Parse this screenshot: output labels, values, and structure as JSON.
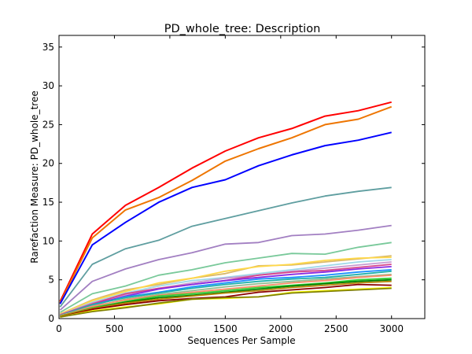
{
  "chart_data": {
    "type": "line",
    "title": "PD_whole_tree: Description",
    "xlabel": "Sequences Per Sample",
    "ylabel": "Rarefaction Measure: PD_whole_tree",
    "xlim": [
      0,
      3300
    ],
    "ylim": [
      0,
      36.5
    ],
    "xticks": [
      0,
      500,
      1000,
      1500,
      2000,
      2500,
      3000
    ],
    "yticks": [
      0,
      5,
      10,
      15,
      20,
      25,
      30,
      35
    ],
    "x": [
      10,
      300,
      600,
      900,
      1200,
      1500,
      1800,
      2100,
      2400,
      2700,
      3000
    ],
    "grid": false,
    "series": [
      {
        "color": "#ff0000",
        "values": [
          2.2,
          10.9,
          14.6,
          16.9,
          19.4,
          21.6,
          23.3,
          24.5,
          26.1,
          26.8,
          27.9
        ]
      },
      {
        "color": "#ee7500",
        "values": [
          2.0,
          10.4,
          14.0,
          15.6,
          17.8,
          20.3,
          21.9,
          23.3,
          25.0,
          25.7,
          27.3
        ]
      },
      {
        "color": "#0000ff",
        "values": [
          1.9,
          9.5,
          12.4,
          15.0,
          16.9,
          17.9,
          19.7,
          21.1,
          22.3,
          23.0,
          24.0
        ]
      },
      {
        "color": "#5f9ea0",
        "values": [
          1.5,
          7.0,
          9.0,
          10.1,
          11.9,
          12.9,
          13.9,
          14.9,
          15.8,
          16.4,
          16.9
        ]
      },
      {
        "color": "#a27fc2",
        "values": [
          1.1,
          4.8,
          6.4,
          7.6,
          8.5,
          9.6,
          9.8,
          10.7,
          10.9,
          11.4,
          12.0
        ]
      },
      {
        "color": "#79c99a",
        "values": [
          0.8,
          3.2,
          4.2,
          5.6,
          6.3,
          7.2,
          7.8,
          8.4,
          8.3,
          9.2,
          9.8
        ]
      },
      {
        "color": "#d9b96b",
        "values": [
          0.6,
          2.4,
          3.7,
          4.4,
          5.2,
          5.8,
          6.8,
          6.9,
          7.3,
          7.7,
          8.1
        ]
      },
      {
        "color": "#ffd84a",
        "values": [
          0.6,
          2.3,
          3.5,
          4.6,
          5.2,
          6.1,
          6.7,
          7.0,
          7.5,
          7.8,
          7.9
        ]
      },
      {
        "color": "#9fd8e8",
        "values": [
          0.5,
          2.1,
          3.3,
          4.2,
          4.9,
          5.3,
          5.8,
          6.3,
          6.8,
          7.3,
          7.6
        ]
      },
      {
        "color": "#c79ad1",
        "values": [
          0.5,
          2.0,
          3.1,
          3.9,
          4.6,
          5.2,
          5.6,
          6.1,
          6.5,
          6.9,
          7.3
        ]
      },
      {
        "color": "#d6478b",
        "values": [
          0.5,
          1.9,
          3.2,
          3.9,
          4.4,
          4.9,
          5.6,
          6.0,
          6.2,
          6.6,
          7.0
        ]
      },
      {
        "color": "#8a2be2",
        "values": [
          0.4,
          1.8,
          2.9,
          3.8,
          4.4,
          4.9,
          5.3,
          5.7,
          6.0,
          6.4,
          6.7
        ]
      },
      {
        "color": "#1e90ff",
        "values": [
          0.4,
          1.7,
          2.8,
          3.4,
          4.1,
          4.6,
          5.1,
          5.3,
          5.6,
          6.0,
          6.3
        ]
      },
      {
        "color": "#20b2aa",
        "values": [
          0.4,
          1.8,
          2.7,
          3.3,
          3.9,
          4.4,
          4.8,
          5.1,
          5.3,
          5.7,
          6.1
        ]
      },
      {
        "color": "#8fbc8f",
        "values": [
          0.4,
          1.5,
          2.5,
          3.1,
          3.6,
          4.1,
          4.5,
          4.8,
          5.1,
          5.4,
          5.7
        ]
      },
      {
        "color": "#ff8c69",
        "values": [
          0.3,
          1.6,
          2.4,
          3.0,
          3.4,
          3.8,
          4.2,
          4.6,
          4.9,
          5.3,
          5.6
        ]
      },
      {
        "color": "#32cd32",
        "values": [
          0.3,
          1.4,
          2.2,
          2.9,
          3.2,
          3.6,
          4.0,
          4.3,
          4.6,
          5.0,
          5.2
        ]
      },
      {
        "color": "#008000",
        "values": [
          0.3,
          1.3,
          2.1,
          2.7,
          3.0,
          3.4,
          3.8,
          4.2,
          4.5,
          4.8,
          5.0
        ]
      },
      {
        "color": "#b8860b",
        "values": [
          0.3,
          1.3,
          2.0,
          2.5,
          2.9,
          3.3,
          3.6,
          4.0,
          4.3,
          4.6,
          4.8
        ]
      },
      {
        "color": "#8b0000",
        "values": [
          0.2,
          1.2,
          1.8,
          2.3,
          2.6,
          2.8,
          3.4,
          3.7,
          4.0,
          4.4,
          4.3
        ]
      },
      {
        "color": "#ffff00",
        "values": [
          0.2,
          1.0,
          1.5,
          1.9,
          2.5,
          2.6,
          2.8,
          3.4,
          3.6,
          3.8,
          4.0
        ]
      },
      {
        "color": "#808000",
        "values": [
          0.2,
          0.9,
          1.4,
          2.0,
          2.5,
          2.7,
          2.8,
          3.3,
          3.5,
          3.7,
          3.9
        ]
      }
    ]
  }
}
